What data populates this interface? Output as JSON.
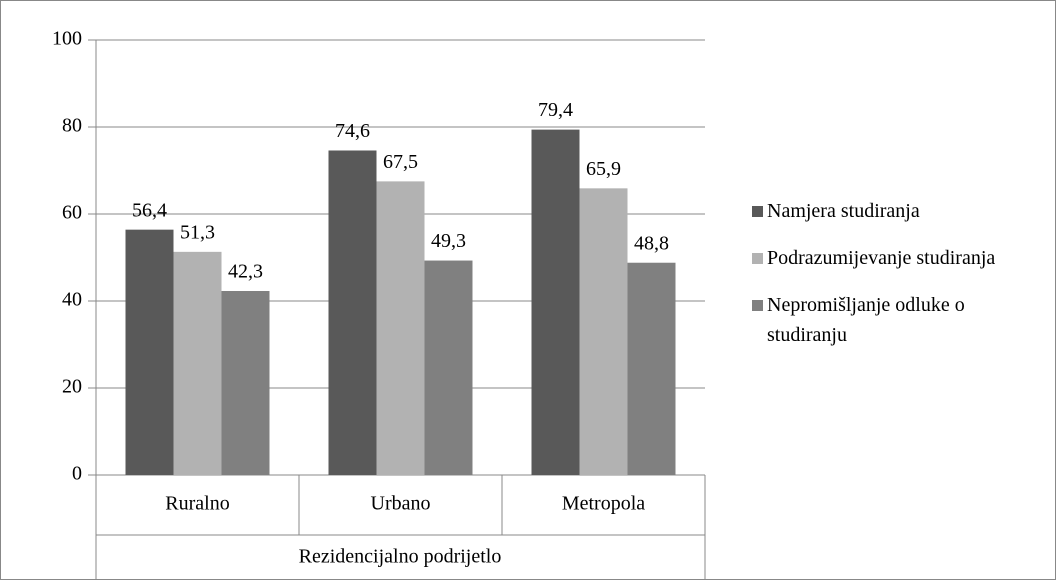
{
  "chart_data": {
    "type": "bar",
    "xlabel": "Rezidencijalno podrijetlo",
    "categories": [
      "Ruralno",
      "Urbano",
      "Metropola"
    ],
    "series": [
      {
        "name": "Namjera studiranja",
        "color": "#595959",
        "values": [
          56.4,
          74.6,
          79.4
        ],
        "value_labels": [
          "56,4",
          "74,6",
          "79,4"
        ]
      },
      {
        "name": "Podrazumijevanje studiranja",
        "color": "#b2b2b2",
        "values": [
          51.3,
          67.5,
          65.9
        ],
        "value_labels": [
          "51,3",
          "67,5",
          "65,9"
        ]
      },
      {
        "name": "Nepromišljanje odluke o studiranju",
        "color": "#808080",
        "values": [
          42.3,
          49.3,
          48.8
        ],
        "value_labels": [
          "42,3",
          "49,3",
          "48,8"
        ]
      }
    ],
    "ylim": [
      0,
      100
    ],
    "yticks": [
      0,
      20,
      40,
      60,
      80,
      100
    ],
    "grid": true,
    "legend": "right"
  }
}
